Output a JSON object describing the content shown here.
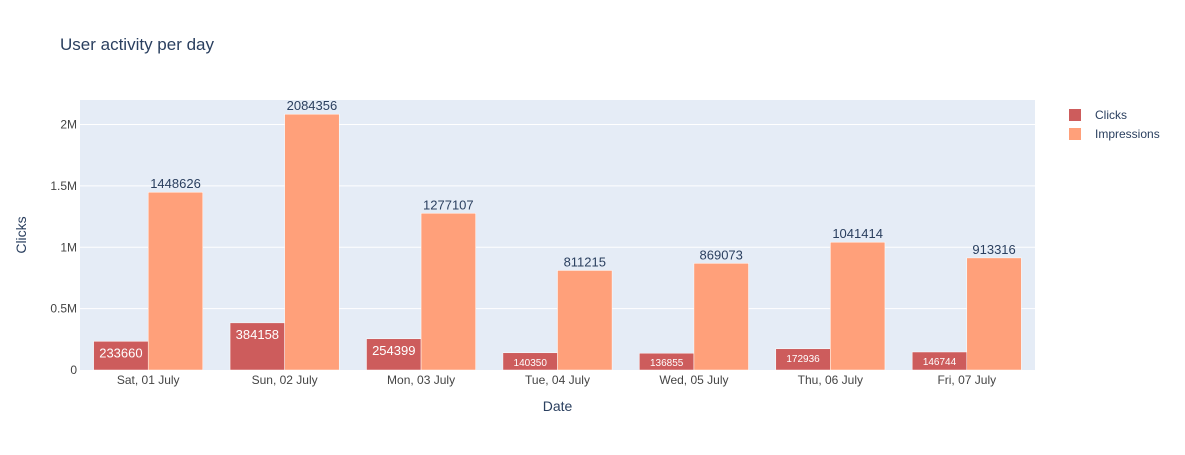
{
  "chart_data": {
    "type": "bar",
    "title": "User activity per day",
    "xlabel": "Date",
    "ylabel": "Clicks",
    "categories": [
      "Sat, 01 July",
      "Sun, 02 July",
      "Mon, 03 July",
      "Tue, 04 July",
      "Wed, 05 July",
      "Thu, 06 July",
      "Fri, 07 July"
    ],
    "ylim": [
      0,
      2200000
    ],
    "yticks": [
      {
        "value": 0,
        "label": "0"
      },
      {
        "value": 500000,
        "label": "0.5M"
      },
      {
        "value": 1000000,
        "label": "1M"
      },
      {
        "value": 1500000,
        "label": "1.5M"
      },
      {
        "value": 2000000,
        "label": "2M"
      }
    ],
    "grid": true,
    "legend_position": "top-right",
    "series": [
      {
        "name": "Clicks",
        "color": "#cd5c5c",
        "label_position": "inside",
        "values": [
          233660,
          384158,
          254399,
          140350,
          136855,
          172936,
          146744
        ],
        "labels": [
          "233660",
          "384158",
          "254399",
          "140350",
          "136855",
          "172936",
          "146744"
        ]
      },
      {
        "name": "Impressions",
        "color": "#ffa07a",
        "label_position": "outside",
        "values": [
          1448626,
          2084356,
          1277107,
          811215,
          869073,
          1041414,
          913316
        ],
        "labels": [
          "1448626",
          "2084356",
          "1277107",
          "811215",
          "869073",
          "1041414",
          "913316"
        ]
      }
    ]
  },
  "colors": {
    "plot_background": "#e5ecf6",
    "gridline": "#ffffff",
    "text": "#2a3f5f",
    "axis_text": "#444444"
  }
}
